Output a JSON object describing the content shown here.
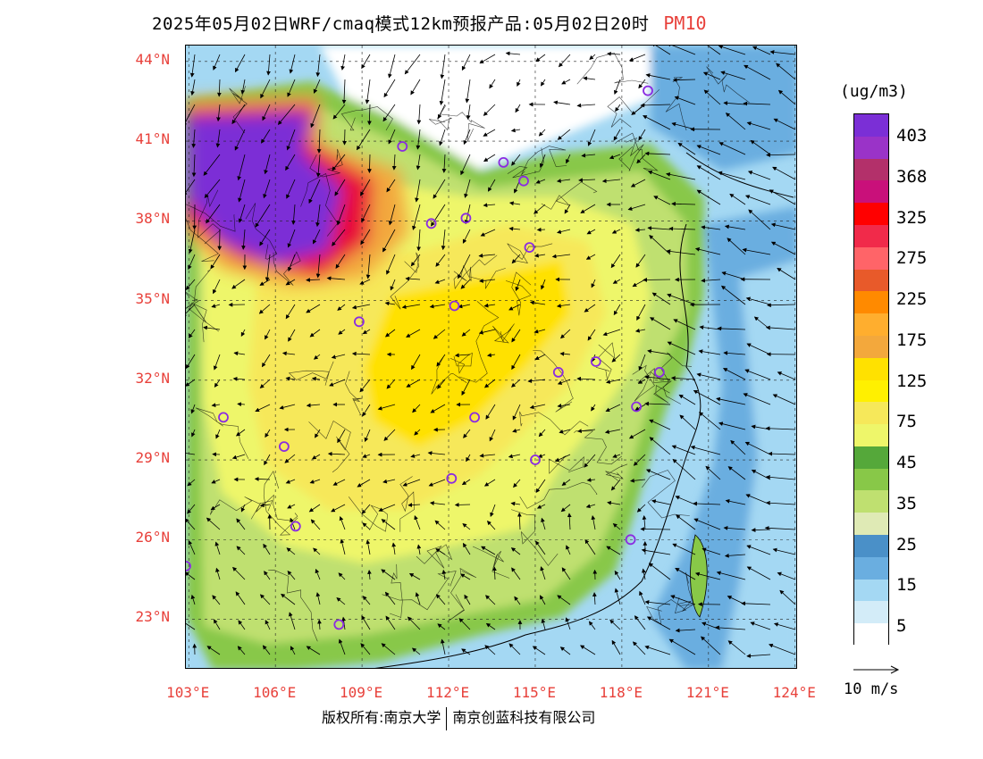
{
  "title": {
    "main": "2025年05月02日WRF/cmaq模式12km预报产品:05月02日20时",
    "variable": "PM10"
  },
  "map": {
    "lat_labels": [
      "44°N",
      "41°N",
      "38°N",
      "35°N",
      "32°N",
      "29°N",
      "26°N",
      "23°N"
    ],
    "lon_labels": [
      "103°E",
      "106°E",
      "109°E",
      "112°E",
      "115°E",
      "118°E",
      "121°E",
      "124°E"
    ],
    "lat_values": [
      44,
      41,
      38,
      35,
      32,
      29,
      26,
      23
    ],
    "lon_values": [
      103,
      106,
      109,
      112,
      115,
      118,
      121,
      124
    ],
    "lat_range": [
      21.1,
      44.6
    ],
    "lon_range": [
      102.9,
      124.1
    ],
    "station_count": 22,
    "colors": {
      "sea_light": "#cde8f5",
      "land_yellow": "#f6e85a",
      "pollution_purple": "#7b2fd6",
      "pollution_red": "#e8103a",
      "border": "#000000",
      "grid": "#222222"
    }
  },
  "colorbar": {
    "unit": "(ug/m3)",
    "levels": [
      "403",
      "368",
      "325",
      "275",
      "225",
      "175",
      "125",
      "75",
      "45",
      "35",
      "25",
      "15",
      "5"
    ],
    "colors_top_to_bottom": [
      "#7b2fd6",
      "#9a33c8",
      "#b3306a",
      "#c9107a",
      "#ff0000",
      "#f12a4a",
      "#ff6468",
      "#e85a2a",
      "#ff8a00",
      "#ffae2e",
      "#f3a83c",
      "#ffe100",
      "#fff000",
      "#f6e85a",
      "#eef66a",
      "#55a83a",
      "#88c848",
      "#bfe070",
      "#dfeab5",
      "#4a90c8",
      "#6aaee0",
      "#a4d8f3",
      "#d3ecf8",
      "#ffffff"
    ]
  },
  "wind_scale": {
    "label": "10 m/s"
  },
  "footer": {
    "copyright_left": "版权所有:南京大学",
    "copyright_right": "南京创蓝科技有限公司"
  }
}
